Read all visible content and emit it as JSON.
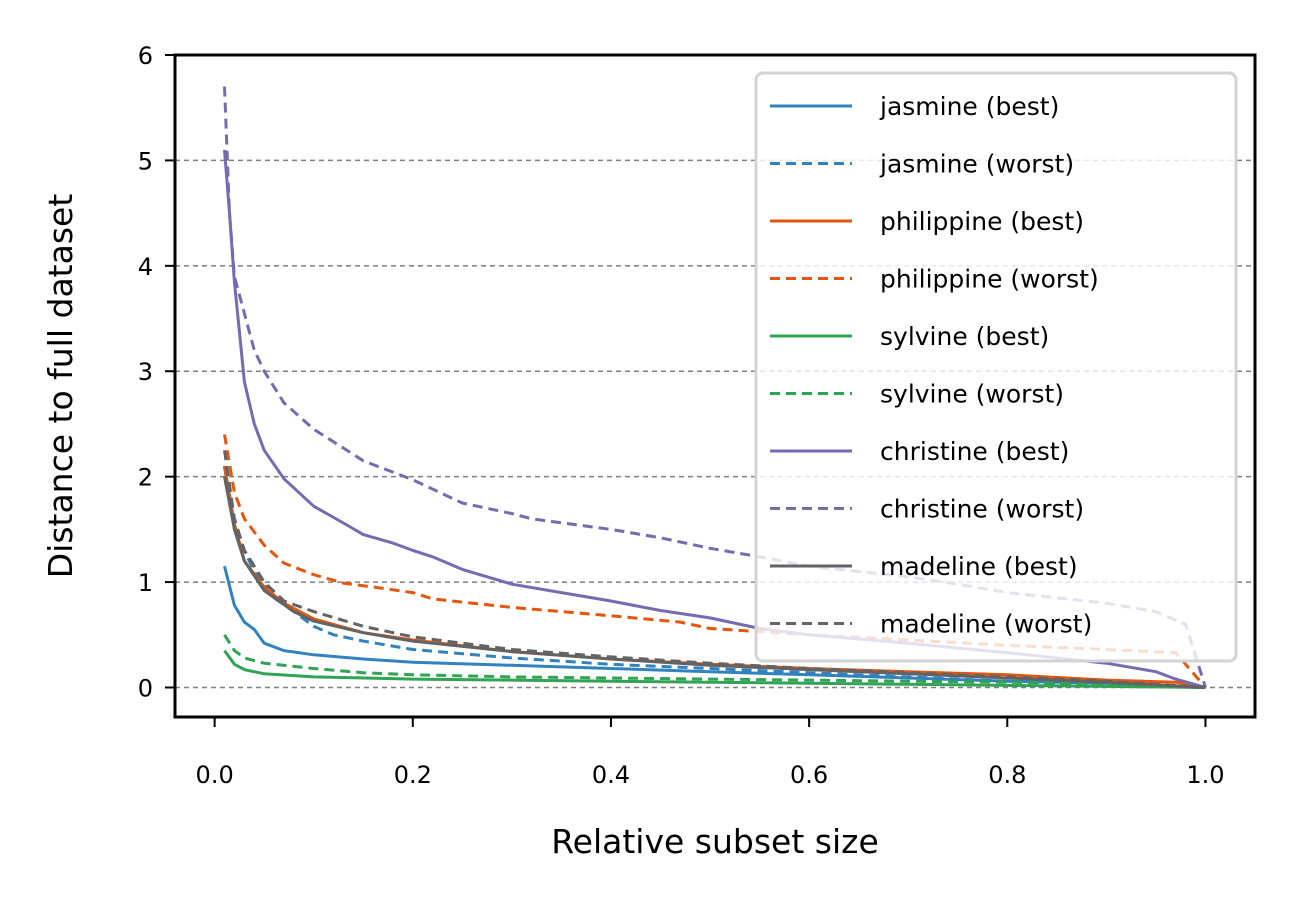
{
  "chart_data": {
    "type": "line",
    "title": "",
    "xlabel": "Relative subset size",
    "ylabel": "Distance to full dataset",
    "xlim": [
      -0.04,
      1.05
    ],
    "ylim": [
      -0.28,
      6.0
    ],
    "xticks": [
      "0.0",
      "0.2",
      "0.4",
      "0.6",
      "0.8",
      "1.0"
    ],
    "yticks": [
      "0",
      "1",
      "2",
      "3",
      "4",
      "5",
      "6"
    ],
    "grid": "horizontal dashed",
    "legend_position": "top-right",
    "series": [
      {
        "name": "jasmine (best)",
        "color": "#3182bd",
        "dash": "solid",
        "points": [
          [
            0.01,
            1.15
          ],
          [
            0.02,
            0.78
          ],
          [
            0.03,
            0.62
          ],
          [
            0.04,
            0.55
          ],
          [
            0.05,
            0.42
          ],
          [
            0.07,
            0.35
          ],
          [
            0.1,
            0.31
          ],
          [
            0.15,
            0.27
          ],
          [
            0.2,
            0.24
          ],
          [
            0.3,
            0.21
          ],
          [
            0.4,
            0.18
          ],
          [
            0.5,
            0.15
          ],
          [
            0.6,
            0.12
          ],
          [
            0.7,
            0.09
          ],
          [
            0.8,
            0.06
          ],
          [
            0.9,
            0.04
          ],
          [
            1.0,
            0.0
          ]
        ]
      },
      {
        "name": "jasmine (worst)",
        "color": "#3182bd",
        "dash": "dashed",
        "points": [
          [
            0.01,
            2.1
          ],
          [
            0.02,
            1.5
          ],
          [
            0.04,
            1.1
          ],
          [
            0.06,
            0.85
          ],
          [
            0.08,
            0.72
          ],
          [
            0.1,
            0.58
          ],
          [
            0.12,
            0.5
          ],
          [
            0.15,
            0.44
          ],
          [
            0.2,
            0.36
          ],
          [
            0.3,
            0.28
          ],
          [
            0.4,
            0.22
          ],
          [
            0.5,
            0.18
          ],
          [
            0.6,
            0.14
          ],
          [
            0.7,
            0.1
          ],
          [
            0.8,
            0.06
          ],
          [
            0.9,
            0.03
          ],
          [
            1.0,
            0.0
          ]
        ]
      },
      {
        "name": "philippine (best)",
        "color": "#e6550d",
        "dash": "solid",
        "points": [
          [
            0.01,
            2.1
          ],
          [
            0.02,
            1.55
          ],
          [
            0.03,
            1.2
          ],
          [
            0.05,
            0.95
          ],
          [
            0.07,
            0.8
          ],
          [
            0.1,
            0.65
          ],
          [
            0.15,
            0.52
          ],
          [
            0.2,
            0.45
          ],
          [
            0.3,
            0.34
          ],
          [
            0.4,
            0.27
          ],
          [
            0.5,
            0.22
          ],
          [
            0.6,
            0.18
          ],
          [
            0.7,
            0.15
          ],
          [
            0.8,
            0.12
          ],
          [
            0.9,
            0.07
          ],
          [
            0.97,
            0.05
          ],
          [
            1.0,
            0.0
          ]
        ]
      },
      {
        "name": "philippine (worst)",
        "color": "#e6550d",
        "dash": "dashed",
        "points": [
          [
            0.01,
            2.4
          ],
          [
            0.02,
            1.85
          ],
          [
            0.03,
            1.6
          ],
          [
            0.05,
            1.35
          ],
          [
            0.07,
            1.18
          ],
          [
            0.1,
            1.07
          ],
          [
            0.13,
            0.99
          ],
          [
            0.17,
            0.94
          ],
          [
            0.2,
            0.9
          ],
          [
            0.22,
            0.84
          ],
          [
            0.3,
            0.76
          ],
          [
            0.35,
            0.72
          ],
          [
            0.4,
            0.68
          ],
          [
            0.47,
            0.62
          ],
          [
            0.5,
            0.56
          ],
          [
            0.6,
            0.5
          ],
          [
            0.7,
            0.45
          ],
          [
            0.8,
            0.4
          ],
          [
            0.9,
            0.36
          ],
          [
            0.97,
            0.33
          ],
          [
            0.98,
            0.22
          ],
          [
            1.0,
            0.0
          ]
        ]
      },
      {
        "name": "sylvine (best)",
        "color": "#31a354",
        "dash": "solid",
        "points": [
          [
            0.01,
            0.35
          ],
          [
            0.02,
            0.22
          ],
          [
            0.03,
            0.17
          ],
          [
            0.05,
            0.13
          ],
          [
            0.1,
            0.1
          ],
          [
            0.2,
            0.08
          ],
          [
            0.3,
            0.07
          ],
          [
            0.4,
            0.06
          ],
          [
            0.5,
            0.05
          ],
          [
            0.6,
            0.04
          ],
          [
            0.7,
            0.03
          ],
          [
            0.8,
            0.02
          ],
          [
            0.9,
            0.01
          ],
          [
            1.0,
            0.0
          ]
        ]
      },
      {
        "name": "sylvine (worst)",
        "color": "#31a354",
        "dash": "dashed",
        "points": [
          [
            0.01,
            0.5
          ],
          [
            0.02,
            0.35
          ],
          [
            0.03,
            0.28
          ],
          [
            0.05,
            0.23
          ],
          [
            0.1,
            0.18
          ],
          [
            0.15,
            0.14
          ],
          [
            0.2,
            0.12
          ],
          [
            0.3,
            0.1
          ],
          [
            0.4,
            0.09
          ],
          [
            0.5,
            0.08
          ],
          [
            0.6,
            0.07
          ],
          [
            0.7,
            0.06
          ],
          [
            0.8,
            0.05
          ],
          [
            0.9,
            0.03
          ],
          [
            1.0,
            0.0
          ]
        ]
      },
      {
        "name": "christine (best)",
        "color": "#756bb1",
        "dash": "solid",
        "points": [
          [
            0.01,
            5.1
          ],
          [
            0.015,
            4.5
          ],
          [
            0.02,
            3.85
          ],
          [
            0.03,
            2.9
          ],
          [
            0.04,
            2.5
          ],
          [
            0.05,
            2.25
          ],
          [
            0.07,
            1.98
          ],
          [
            0.1,
            1.72
          ],
          [
            0.13,
            1.56
          ],
          [
            0.15,
            1.45
          ],
          [
            0.18,
            1.37
          ],
          [
            0.2,
            1.3
          ],
          [
            0.22,
            1.24
          ],
          [
            0.25,
            1.12
          ],
          [
            0.3,
            0.98
          ],
          [
            0.35,
            0.9
          ],
          [
            0.4,
            0.82
          ],
          [
            0.45,
            0.73
          ],
          [
            0.5,
            0.66
          ],
          [
            0.55,
            0.56
          ],
          [
            0.6,
            0.5
          ],
          [
            0.7,
            0.42
          ],
          [
            0.8,
            0.33
          ],
          [
            0.9,
            0.23
          ],
          [
            0.95,
            0.15
          ],
          [
            0.97,
            0.08
          ],
          [
            1.0,
            0.0
          ]
        ]
      },
      {
        "name": "christine (worst)",
        "color": "#756bb1",
        "dash": "dashed",
        "points": [
          [
            0.01,
            5.7
          ],
          [
            0.015,
            4.5
          ],
          [
            0.02,
            3.9
          ],
          [
            0.04,
            3.2
          ],
          [
            0.05,
            3.0
          ],
          [
            0.07,
            2.7
          ],
          [
            0.1,
            2.45
          ],
          [
            0.15,
            2.15
          ],
          [
            0.2,
            1.97
          ],
          [
            0.25,
            1.75
          ],
          [
            0.3,
            1.65
          ],
          [
            0.32,
            1.6
          ],
          [
            0.4,
            1.5
          ],
          [
            0.45,
            1.42
          ],
          [
            0.5,
            1.32
          ],
          [
            0.55,
            1.24
          ],
          [
            0.6,
            1.15
          ],
          [
            0.65,
            1.1
          ],
          [
            0.7,
            1.05
          ],
          [
            0.75,
            0.98
          ],
          [
            0.8,
            0.9
          ],
          [
            0.85,
            0.85
          ],
          [
            0.9,
            0.8
          ],
          [
            0.95,
            0.72
          ],
          [
            0.98,
            0.6
          ],
          [
            1.0,
            0.0
          ]
        ]
      },
      {
        "name": "madeline (best)",
        "color": "#636363",
        "dash": "solid",
        "points": [
          [
            0.01,
            2.0
          ],
          [
            0.02,
            1.5
          ],
          [
            0.03,
            1.2
          ],
          [
            0.05,
            0.92
          ],
          [
            0.08,
            0.72
          ],
          [
            0.1,
            0.63
          ],
          [
            0.15,
            0.52
          ],
          [
            0.2,
            0.44
          ],
          [
            0.3,
            0.34
          ],
          [
            0.4,
            0.27
          ],
          [
            0.5,
            0.21
          ],
          [
            0.6,
            0.17
          ],
          [
            0.7,
            0.13
          ],
          [
            0.8,
            0.09
          ],
          [
            0.9,
            0.05
          ],
          [
            1.0,
            0.0
          ]
        ]
      },
      {
        "name": "madeline (worst)",
        "color": "#636363",
        "dash": "dashed",
        "points": [
          [
            0.01,
            2.25
          ],
          [
            0.02,
            1.6
          ],
          [
            0.03,
            1.3
          ],
          [
            0.05,
            1.0
          ],
          [
            0.07,
            0.82
          ],
          [
            0.1,
            0.72
          ],
          [
            0.15,
            0.58
          ],
          [
            0.2,
            0.48
          ],
          [
            0.3,
            0.36
          ],
          [
            0.4,
            0.29
          ],
          [
            0.5,
            0.23
          ],
          [
            0.6,
            0.18
          ],
          [
            0.7,
            0.14
          ],
          [
            0.8,
            0.1
          ],
          [
            0.9,
            0.06
          ],
          [
            1.0,
            0.0
          ]
        ]
      }
    ]
  }
}
